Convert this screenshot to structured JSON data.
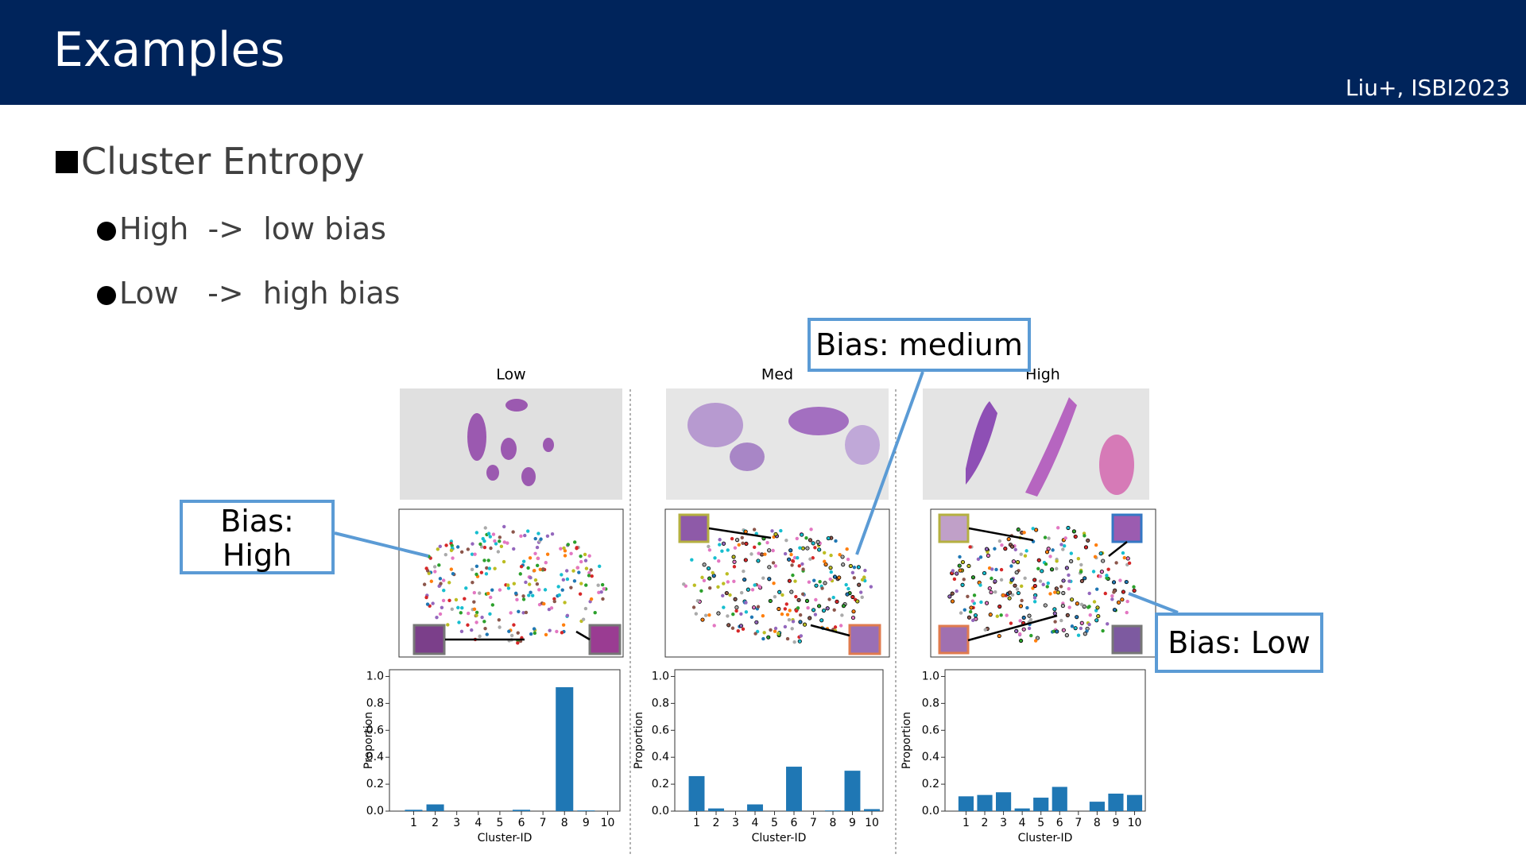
{
  "header": {
    "title": "Examples",
    "citation": "Liu+, ISBI2023"
  },
  "heading": "Cluster Entropy",
  "bullets": [
    "High  ->  low bias",
    "Low   ->  high bias"
  ],
  "callouts": {
    "medium": "Bias: medium",
    "high": [
      "Bias:",
      "High"
    ],
    "low": "Bias: Low"
  },
  "chart_data": [
    {
      "type": "bar",
      "title": "Low",
      "x_label": "Cluster-ID",
      "y_label": "Proportion",
      "color": "#1f77b4",
      "categories": [
        "1",
        "2",
        "3",
        "4",
        "5",
        "6",
        "7",
        "8",
        "9",
        "10"
      ],
      "values": [
        0.01,
        0.05,
        0,
        0,
        0,
        0.01,
        0,
        0.92,
        0.005,
        0
      ],
      "ylim": [
        0,
        1.05
      ],
      "yticks": [
        {
          "value": 0,
          "label": "0.0"
        },
        {
          "value": 0.2,
          "label": "0.2"
        },
        {
          "value": 0.4,
          "label": "0.4"
        },
        {
          "value": 0.6,
          "label": "0.6"
        },
        {
          "value": 0.8,
          "label": "0.8"
        },
        {
          "value": 1,
          "label": "1.0"
        }
      ]
    },
    {
      "type": "bar",
      "title": "Med",
      "x_label": "Cluster-ID",
      "y_label": "Proportion",
      "color": "#1f77b4",
      "categories": [
        "1",
        "2",
        "3",
        "4",
        "5",
        "6",
        "7",
        "8",
        "9",
        "10"
      ],
      "values": [
        0.26,
        0.02,
        0,
        0.05,
        0,
        0.33,
        0,
        0.005,
        0.3,
        0.015
      ],
      "ylim": [
        0,
        1.05
      ],
      "yticks": [
        {
          "value": 0,
          "label": "0.0"
        },
        {
          "value": 0.2,
          "label": "0.2"
        },
        {
          "value": 0.4,
          "label": "0.4"
        },
        {
          "value": 0.6,
          "label": "0.6"
        },
        {
          "value": 0.8,
          "label": "0.8"
        },
        {
          "value": 1,
          "label": "1.0"
        }
      ]
    },
    {
      "type": "bar",
      "title": "High",
      "x_label": "Cluster-ID",
      "y_label": "Proportion",
      "color": "#1f77b4",
      "categories": [
        "1",
        "2",
        "3",
        "4",
        "5",
        "6",
        "7",
        "8",
        "9",
        "10"
      ],
      "values": [
        0.11,
        0.12,
        0.14,
        0.02,
        0.1,
        0.18,
        0,
        0.07,
        0.13,
        0.12
      ],
      "ylim": [
        0,
        1.05
      ],
      "yticks": [
        {
          "value": 0,
          "label": "0.0"
        },
        {
          "value": 0.2,
          "label": "0.2"
        },
        {
          "value": 0.4,
          "label": "0.4"
        },
        {
          "value": 0.6,
          "label": "0.6"
        },
        {
          "value": 0.8,
          "label": "0.8"
        },
        {
          "value": 1,
          "label": "1.0"
        }
      ]
    }
  ]
}
